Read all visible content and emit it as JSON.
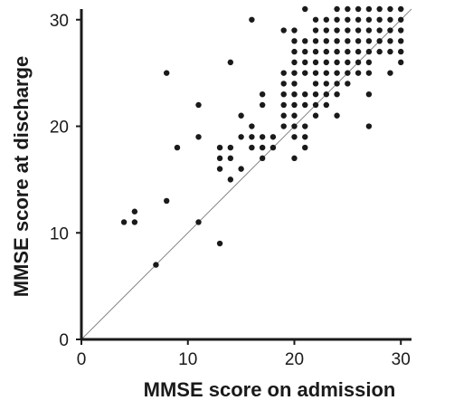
{
  "chart_data": {
    "type": "scatter",
    "title": "",
    "xlabel": "MMSE score on admission",
    "ylabel": "MMSE score  at discharge",
    "xlim": [
      0,
      31
    ],
    "ylim": [
      0,
      31
    ],
    "xticks": [
      "0",
      "10",
      "20",
      "30"
    ],
    "yticks": [
      "0",
      "10",
      "20",
      "30"
    ],
    "grid": false,
    "reference_line": {
      "from": [
        0,
        0
      ],
      "to": [
        31,
        31
      ]
    },
    "points": [
      [
        4,
        11
      ],
      [
        5,
        11
      ],
      [
        5,
        12
      ],
      [
        7,
        7
      ],
      [
        8,
        13
      ],
      [
        8,
        25
      ],
      [
        9,
        18
      ],
      [
        11,
        11
      ],
      [
        11,
        19
      ],
      [
        11,
        22
      ],
      [
        13,
        9
      ],
      [
        13,
        16
      ],
      [
        13,
        17
      ],
      [
        13,
        18
      ],
      [
        14,
        15
      ],
      [
        14,
        17
      ],
      [
        14,
        18
      ],
      [
        14,
        26
      ],
      [
        15,
        16
      ],
      [
        15,
        19
      ],
      [
        15,
        21
      ],
      [
        16,
        18
      ],
      [
        16,
        19
      ],
      [
        16,
        20
      ],
      [
        16,
        30
      ],
      [
        17,
        17
      ],
      [
        17,
        18
      ],
      [
        17,
        19
      ],
      [
        17,
        22
      ],
      [
        17,
        23
      ],
      [
        18,
        18
      ],
      [
        18,
        19
      ],
      [
        19,
        20
      ],
      [
        19,
        21
      ],
      [
        19,
        22
      ],
      [
        19,
        23
      ],
      [
        19,
        24
      ],
      [
        19,
        25
      ],
      [
        19,
        29
      ],
      [
        20,
        17
      ],
      [
        20,
        19
      ],
      [
        20,
        20
      ],
      [
        20,
        21
      ],
      [
        20,
        22
      ],
      [
        20,
        23
      ],
      [
        20,
        24
      ],
      [
        20,
        25
      ],
      [
        20,
        26
      ],
      [
        20,
        27
      ],
      [
        20,
        28
      ],
      [
        20,
        29
      ],
      [
        21,
        18
      ],
      [
        21,
        19
      ],
      [
        21,
        20
      ],
      [
        21,
        22
      ],
      [
        21,
        23
      ],
      [
        21,
        25
      ],
      [
        21,
        26
      ],
      [
        21,
        27
      ],
      [
        21,
        28
      ],
      [
        21,
        31
      ],
      [
        22,
        21
      ],
      [
        22,
        22
      ],
      [
        22,
        23
      ],
      [
        22,
        24
      ],
      [
        22,
        25
      ],
      [
        22,
        26
      ],
      [
        22,
        27
      ],
      [
        22,
        28
      ],
      [
        22,
        29
      ],
      [
        22,
        30
      ],
      [
        23,
        22
      ],
      [
        23,
        23
      ],
      [
        23,
        24
      ],
      [
        23,
        25
      ],
      [
        23,
        26
      ],
      [
        23,
        27
      ],
      [
        23,
        28
      ],
      [
        23,
        29
      ],
      [
        23,
        30
      ],
      [
        24,
        21
      ],
      [
        24,
        23
      ],
      [
        24,
        24
      ],
      [
        24,
        25
      ],
      [
        24,
        26
      ],
      [
        24,
        27
      ],
      [
        24,
        28
      ],
      [
        24,
        29
      ],
      [
        24,
        30
      ],
      [
        24,
        31
      ],
      [
        25,
        24
      ],
      [
        25,
        25
      ],
      [
        25,
        26
      ],
      [
        25,
        27
      ],
      [
        25,
        28
      ],
      [
        25,
        29
      ],
      [
        25,
        30
      ],
      [
        25,
        31
      ],
      [
        26,
        25
      ],
      [
        26,
        26
      ],
      [
        26,
        27
      ],
      [
        26,
        28
      ],
      [
        26,
        29
      ],
      [
        26,
        30
      ],
      [
        26,
        31
      ],
      [
        27,
        20
      ],
      [
        27,
        23
      ],
      [
        27,
        25
      ],
      [
        27,
        26
      ],
      [
        27,
        27
      ],
      [
        27,
        28
      ],
      [
        27,
        29
      ],
      [
        27,
        30
      ],
      [
        27,
        31
      ],
      [
        28,
        27
      ],
      [
        28,
        28
      ],
      [
        28,
        29
      ],
      [
        28,
        30
      ],
      [
        28,
        31
      ],
      [
        29,
        25
      ],
      [
        29,
        27
      ],
      [
        29,
        28
      ],
      [
        29,
        29
      ],
      [
        29,
        30
      ],
      [
        29,
        31
      ],
      [
        30,
        26
      ],
      [
        30,
        27
      ],
      [
        30,
        28
      ],
      [
        30,
        29
      ],
      [
        30,
        30
      ],
      [
        30,
        31
      ]
    ]
  }
}
